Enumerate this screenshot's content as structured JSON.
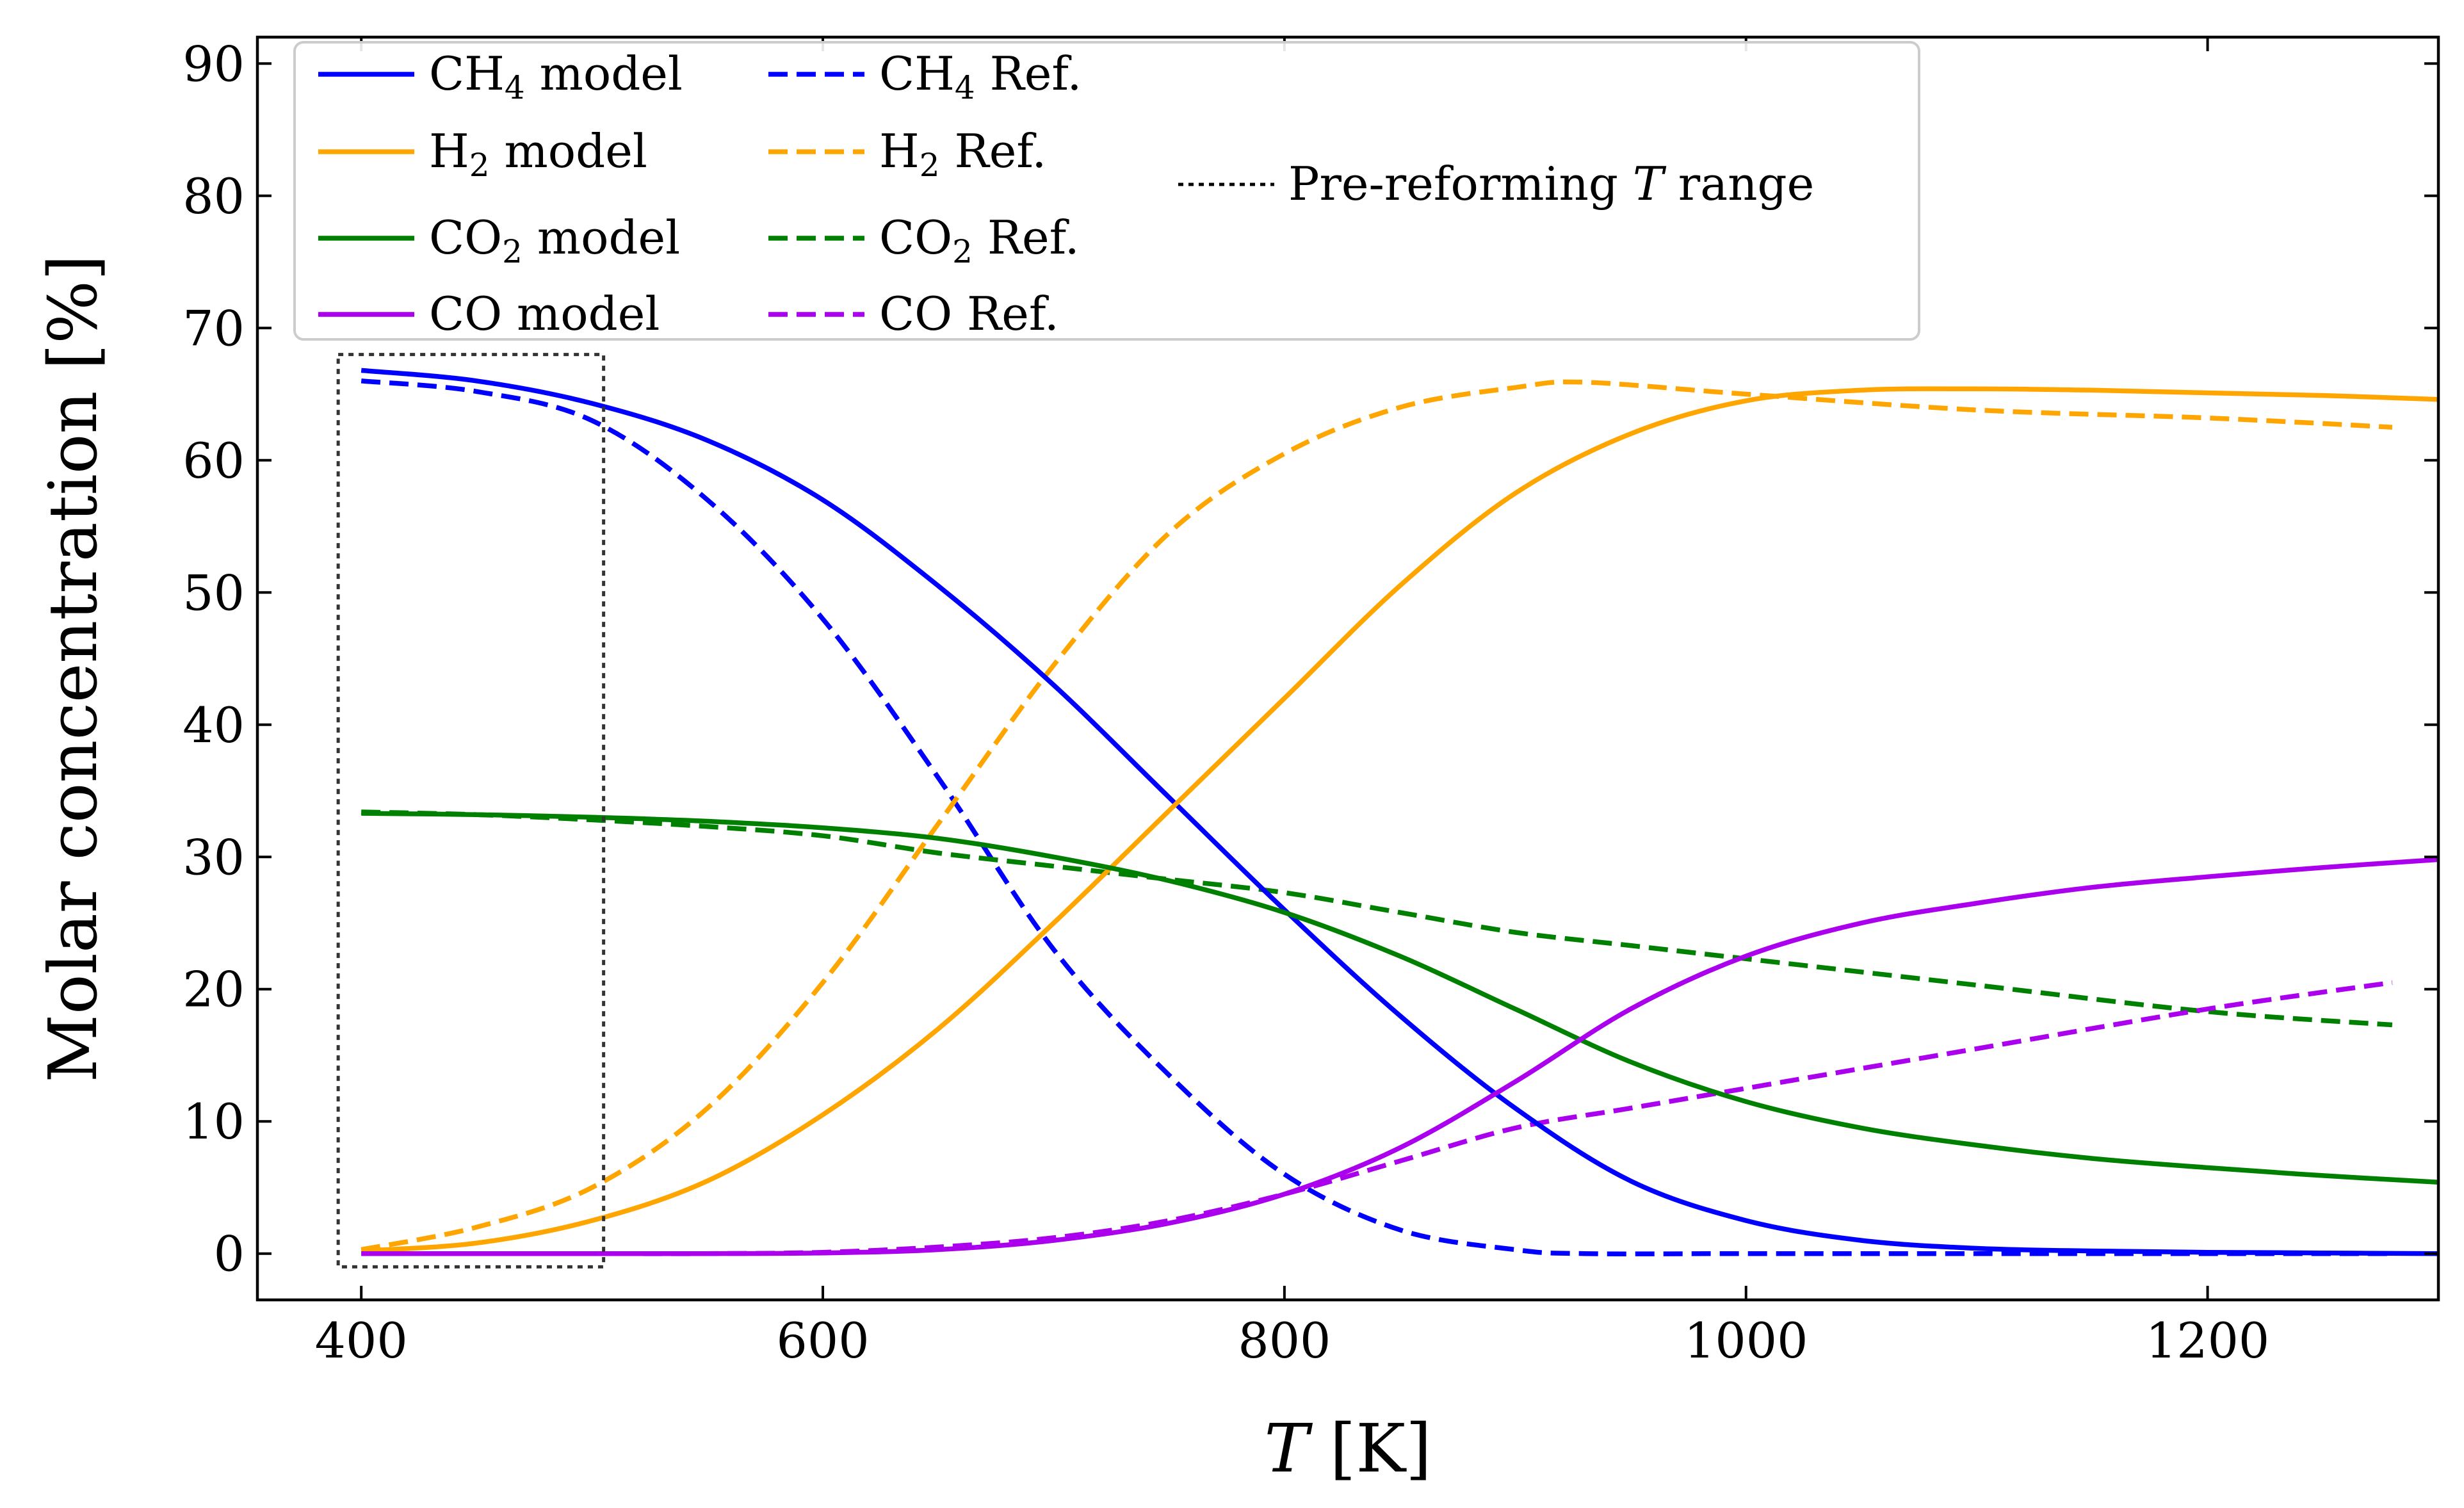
{
  "chart_data": {
    "type": "line",
    "title": "",
    "xlabel": "T [K]",
    "ylabel": "Molar concentration [%]",
    "xlim": [
      355,
      1300
    ],
    "ylim": [
      -3.5,
      92
    ],
    "xticks": [
      400,
      600,
      800,
      1000,
      1200
    ],
    "yticks": [
      0,
      10,
      20,
      30,
      40,
      50,
      60,
      70,
      80,
      90
    ],
    "grid": false,
    "legend_position": "top-left",
    "series": [
      {
        "name": "CH₄ model",
        "label_main": "CH",
        "label_sub": "4",
        "label_rest": " model",
        "color": "#0000ff",
        "style": "solid",
        "x": [
          400,
          450,
          500,
          550,
          600,
          650,
          700,
          750,
          800,
          850,
          900,
          950,
          1000,
          1050,
          1100,
          1150,
          1200,
          1250,
          1300
        ],
        "y": [
          66.8,
          66.0,
          64.3,
          61.5,
          57.0,
          50.5,
          43.0,
          34.5,
          26.0,
          18.0,
          11.0,
          5.5,
          2.5,
          1.0,
          0.4,
          0.2,
          0.1,
          0.05,
          0.0
        ]
      },
      {
        "name": "H₂ model",
        "label_main": "H",
        "label_sub": "2",
        "label_rest": " model",
        "color": "#ffa500",
        "style": "solid",
        "x": [
          400,
          450,
          500,
          550,
          600,
          650,
          700,
          750,
          800,
          850,
          900,
          950,
          1000,
          1050,
          1100,
          1150,
          1200,
          1250,
          1300
        ],
        "y": [
          0.2,
          0.8,
          2.5,
          5.5,
          10.5,
          17.0,
          25.0,
          33.5,
          42.0,
          50.5,
          57.5,
          62.0,
          64.5,
          65.3,
          65.4,
          65.3,
          65.1,
          64.9,
          64.6
        ]
      },
      {
        "name": "CO₂ model",
        "label_main": "CO",
        "label_sub": "2",
        "label_rest": " model",
        "color": "#008000",
        "style": "solid",
        "x": [
          400,
          450,
          500,
          550,
          600,
          650,
          700,
          750,
          800,
          850,
          900,
          950,
          1000,
          1050,
          1100,
          1150,
          1200,
          1250,
          1300
        ],
        "y": [
          33.3,
          33.2,
          33.0,
          32.7,
          32.2,
          31.4,
          30.0,
          28.2,
          25.8,
          22.5,
          18.5,
          14.5,
          11.5,
          9.5,
          8.2,
          7.2,
          6.5,
          5.9,
          5.4
        ]
      },
      {
        "name": "CO model",
        "label_main": "CO",
        "label_sub": "",
        "label_rest": " model",
        "color": "#aa00ee",
        "style": "solid",
        "x": [
          400,
          450,
          500,
          550,
          600,
          650,
          700,
          750,
          800,
          850,
          900,
          950,
          1000,
          1050,
          1100,
          1150,
          1200,
          1250,
          1300
        ],
        "y": [
          0.0,
          0.0,
          0.0,
          0.0,
          0.05,
          0.3,
          1.0,
          2.3,
          4.5,
          8.0,
          13.0,
          18.5,
          22.5,
          25.0,
          26.5,
          27.7,
          28.5,
          29.2,
          29.8
        ]
      },
      {
        "name": "CH₄ Ref.",
        "label_main": "CH",
        "label_sub": "4",
        "label_rest": " Ref.",
        "color": "#0000ff",
        "style": "dashed",
        "x": [
          400,
          450,
          500,
          550,
          600,
          650,
          700,
          750,
          800,
          850,
          900,
          930,
          1000,
          1100,
          1200,
          1280
        ],
        "y": [
          66.0,
          65.2,
          63.0,
          57.0,
          48.0,
          36.0,
          23.0,
          13.5,
          6.0,
          1.8,
          0.3,
          0.0,
          0.0,
          0.0,
          0.0,
          0.0
        ]
      },
      {
        "name": "H₂ Ref.",
        "label_main": "H",
        "label_sub": "2",
        "label_rest": " Ref.",
        "color": "#ffa500",
        "style": "dashed",
        "x": [
          400,
          450,
          500,
          550,
          600,
          650,
          700,
          750,
          800,
          850,
          900,
          930,
          1000,
          1100,
          1200,
          1280
        ],
        "y": [
          0.3,
          2.0,
          5.0,
          11.0,
          20.5,
          32.5,
          44.5,
          54.5,
          60.5,
          64.0,
          65.5,
          65.9,
          65.0,
          63.8,
          63.2,
          62.5
        ]
      },
      {
        "name": "CO₂ Ref.",
        "label_main": "CO",
        "label_sub": "2",
        "label_rest": " Ref.",
        "color": "#008000",
        "style": "dashed",
        "x": [
          400,
          450,
          500,
          550,
          600,
          650,
          700,
          750,
          800,
          850,
          900,
          950,
          1000,
          1100,
          1200,
          1280
        ],
        "y": [
          33.4,
          33.2,
          32.8,
          32.3,
          31.6,
          30.3,
          29.3,
          28.3,
          27.3,
          25.8,
          24.3,
          23.3,
          22.3,
          20.3,
          18.3,
          17.3
        ]
      },
      {
        "name": "CO Ref.",
        "label_main": "CO",
        "label_sub": "",
        "label_rest": " Ref.",
        "color": "#aa00ee",
        "style": "dashed",
        "x": [
          400,
          450,
          500,
          550,
          600,
          650,
          700,
          750,
          800,
          850,
          900,
          950,
          1000,
          1100,
          1200,
          1280
        ],
        "y": [
          0.0,
          0.0,
          0.0,
          0.0,
          0.1,
          0.5,
          1.2,
          2.5,
          4.5,
          7.0,
          9.5,
          11.0,
          12.5,
          15.5,
          18.5,
          20.5
        ]
      }
    ],
    "annotation": {
      "label": "Pre-reforming T range",
      "label_before": "Pre-reforming ",
      "label_symbol": "T",
      "label_after": " range",
      "x_range": [
        390,
        505
      ],
      "y_range": [
        -1,
        68
      ],
      "style": "dotted",
      "color": "#333333"
    }
  }
}
